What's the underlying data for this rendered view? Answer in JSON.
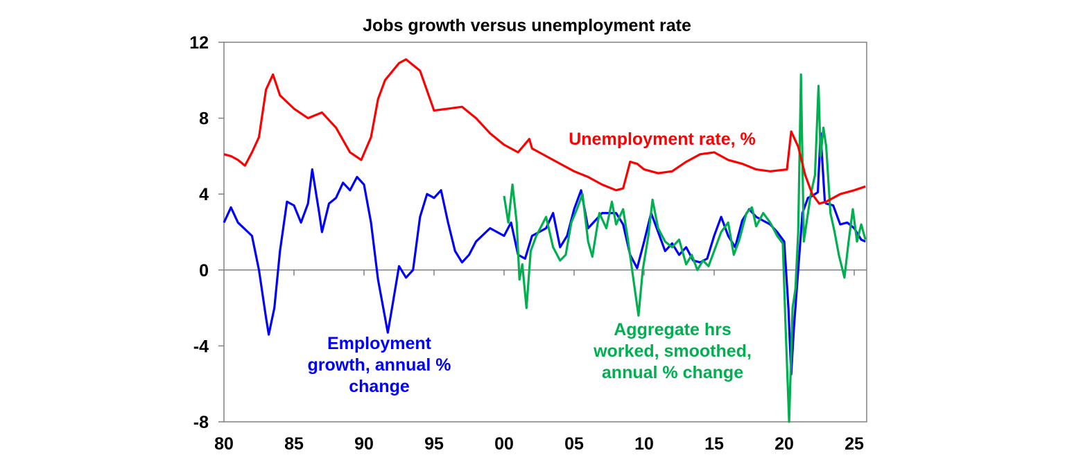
{
  "chart_data": {
    "type": "line",
    "title": "Jobs growth versus unemployment rate",
    "xlabel": "",
    "ylabel": "",
    "xlim": [
      1980,
      2025.8
    ],
    "ylim": [
      -8,
      12
    ],
    "grid": false,
    "y_ticks": [
      12,
      8,
      4,
      0,
      -4,
      -8
    ],
    "y_tick_labels": [
      "12",
      "8",
      "4",
      "0",
      "-4",
      "-8"
    ],
    "x_ticks": [
      1980,
      1985,
      1990,
      1995,
      2000,
      2005,
      2010,
      2015,
      2020,
      2025
    ],
    "x_tick_labels": [
      "80",
      "85",
      "90",
      "95",
      "00",
      "05",
      "10",
      "15",
      "20",
      "25"
    ],
    "series": [
      {
        "name": "Unemployment rate, %",
        "color": "#ff0000",
        "x": [
          1980,
          1980.5,
          1981,
          1981.5,
          1982,
          1982.5,
          1983,
          1983.5,
          1984,
          1985,
          1986,
          1987,
          1988,
          1989,
          1989.8,
          1990.5,
          1991,
          1991.5,
          1992.5,
          1993,
          1994,
          1995,
          1996,
          1997,
          1998,
          1999,
          2000,
          2001,
          2001.8,
          2002,
          2003,
          2004,
          2005,
          2006,
          2007,
          2008,
          2008.5,
          2009,
          2009.5,
          2010,
          2011,
          2012,
          2013,
          2014,
          2015,
          2016,
          2017,
          2018,
          2019,
          2020.2,
          2020.5,
          2021,
          2021.5,
          2022,
          2022.5,
          2023,
          2024,
          2025,
          2025.8
        ],
        "y": [
          6.1,
          6.0,
          5.8,
          5.5,
          6.2,
          7.0,
          9.5,
          10.3,
          9.2,
          8.5,
          8.0,
          8.3,
          7.5,
          6.2,
          5.8,
          7.0,
          9.0,
          10.0,
          10.9,
          11.1,
          10.5,
          8.4,
          8.5,
          8.6,
          8.0,
          7.2,
          6.6,
          6.2,
          6.9,
          6.4,
          6.0,
          5.6,
          5.2,
          4.9,
          4.5,
          4.2,
          4.3,
          5.7,
          5.6,
          5.3,
          5.1,
          5.2,
          5.7,
          6.1,
          6.2,
          5.8,
          5.6,
          5.3,
          5.2,
          5.3,
          7.3,
          6.5,
          5.0,
          4.0,
          3.5,
          3.6,
          4.0,
          4.2,
          4.4
        ]
      },
      {
        "name": "Employment growth, annual % change",
        "color": "#0000ff",
        "x": [
          1980,
          1980.5,
          1981,
          1982,
          1982.5,
          1983,
          1983.2,
          1983.6,
          1984,
          1984.5,
          1985,
          1985.5,
          1986,
          1986.3,
          1986.8,
          1987,
          1987.5,
          1988,
          1988.5,
          1989,
          1989.5,
          1990,
          1990.5,
          1991,
          1991.5,
          1991.7,
          1992,
          1992.5,
          1993,
          1993.5,
          1994,
          1994.5,
          1995,
          1995.5,
          1996,
          1996.5,
          1997,
          1997.5,
          1998,
          1999,
          2000,
          2000.5,
          2001,
          2001.5,
          2002,
          2003,
          2003.5,
          2004,
          2004.5,
          2005,
          2005.5,
          2006,
          2006.5,
          2007,
          2008,
          2008.5,
          2009,
          2009.5,
          2010,
          2010.5,
          2011,
          2011.5,
          2012,
          2012.5,
          2013,
          2013.5,
          2014,
          2014.5,
          2015,
          2015.5,
          2016,
          2016.5,
          2017,
          2017.5,
          2018,
          2019,
          2019.5,
          2020,
          2020.3,
          2020.5,
          2020.7,
          2021,
          2021.3,
          2021.7,
          2022,
          2022.4,
          2022.6,
          2022.9,
          2023,
          2023.5,
          2024,
          2024.5,
          2025,
          2025.5,
          2025.8
        ],
        "y": [
          2.5,
          3.3,
          2.5,
          1.8,
          0,
          -2.5,
          -3.4,
          -2.0,
          1.0,
          3.6,
          3.4,
          2.5,
          3.5,
          5.3,
          3.0,
          2.0,
          3.5,
          3.8,
          4.6,
          4.2,
          4.9,
          4.5,
          2.5,
          -0.5,
          -2.5,
          -3.3,
          -2.0,
          0.2,
          -0.4,
          0,
          2.8,
          4.0,
          3.8,
          4.2,
          2.5,
          1.0,
          0.4,
          0.8,
          1.5,
          2.2,
          1.8,
          2.5,
          0.8,
          0.6,
          1.8,
          2.2,
          3.0,
          1.2,
          1.8,
          3.2,
          4.2,
          2.2,
          2.6,
          3.0,
          3.0,
          2.4,
          0.8,
          0.1,
          1.5,
          3.0,
          2.0,
          1.0,
          1.4,
          0.8,
          1.2,
          0.5,
          0.4,
          0.6,
          1.8,
          2.8,
          1.8,
          1.2,
          2.6,
          3.2,
          2.8,
          2.4,
          2.0,
          1.5,
          -2.0,
          -5.5,
          -3.0,
          0,
          3.0,
          3.8,
          3.9,
          4.1,
          7.2,
          3.6,
          3.5,
          3.4,
          2.4,
          2.5,
          2.2,
          1.6,
          1.5
        ]
      },
      {
        "name": "Aggregate hrs worked, smoothed, annual % change",
        "color": "#00b050",
        "x": [
          2000,
          2000.3,
          2000.6,
          2000.9,
          2001.1,
          2001.3,
          2001.6,
          2001.9,
          2002.3,
          2003,
          2003.5,
          2004,
          2004.4,
          2004.8,
          2005.2,
          2005.6,
          2006,
          2006.3,
          2006.8,
          2007.3,
          2007.7,
          2008,
          2008.5,
          2008.8,
          2009.2,
          2009.6,
          2009.9,
          2010.3,
          2010.6,
          2011,
          2011.5,
          2012,
          2012.5,
          2013,
          2013.4,
          2013.8,
          2014.2,
          2014.6,
          2015,
          2015.5,
          2016,
          2016.4,
          2016.8,
          2017.3,
          2017.7,
          2018,
          2018.5,
          2019,
          2019.5,
          2019.9,
          2020.1,
          2020.35,
          2020.6,
          2020.8,
          2021.0,
          2021.2,
          2021.4,
          2021.6,
          2021.9,
          2022.2,
          2022.45,
          2022.6,
          2022.8,
          2023,
          2023.3,
          2023.6,
          2023.9,
          2024.3,
          2024.6,
          2024.9,
          2025.2,
          2025.5,
          2025.8
        ],
        "y": [
          3.9,
          2.5,
          4.5,
          2.5,
          -0.5,
          0.3,
          -2.0,
          1.0,
          1.8,
          2.8,
          1.2,
          0.5,
          0.8,
          2.5,
          3.2,
          4.0,
          1.5,
          0.7,
          3.0,
          2.2,
          3.6,
          2.4,
          3.2,
          1.8,
          -0.3,
          -2.4,
          0,
          1.8,
          3.7,
          2.2,
          1.5,
          1.2,
          1.6,
          0.3,
          0.8,
          0,
          0.5,
          0.2,
          1.0,
          2.0,
          2.5,
          0.8,
          1.6,
          3.0,
          3.3,
          2.3,
          3.0,
          2.5,
          1.8,
          1.4,
          -3.0,
          -8.0,
          -2.0,
          -1.0,
          2.0,
          10.3,
          1.5,
          2.5,
          4.0,
          5.0,
          9.7,
          6.0,
          7.5,
          6.5,
          3.0,
          2.0,
          0.8,
          -0.4,
          1.5,
          3.2,
          1.5,
          2.4,
          1.6
        ]
      }
    ],
    "annotations": {
      "unemployment": [
        "Unemployment rate, %"
      ],
      "employment": [
        "Employment",
        "growth, annual %",
        "change"
      ],
      "hours": [
        "Aggregate hrs",
        "worked, smoothed,",
        "annual % change"
      ]
    }
  }
}
